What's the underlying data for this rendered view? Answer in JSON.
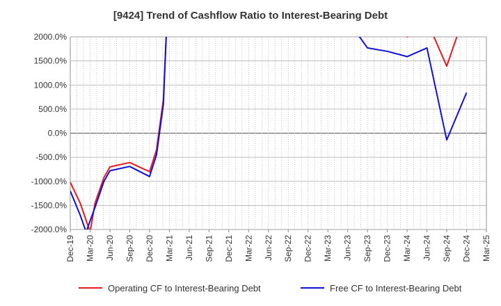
{
  "chart_data": {
    "type": "line",
    "title": "[9424]  Trend of Cashflow Ratio to Interest-Bearing Debt",
    "xlabel": "",
    "ylabel": "",
    "categories": [
      "Dec-19",
      "Mar-20",
      "Jun-20",
      "Sep-20",
      "Dec-20",
      "Mar-21",
      "Jun-21",
      "Sep-21",
      "Dec-21",
      "Mar-22",
      "Jun-22",
      "Sep-22",
      "Dec-22",
      "Mar-23",
      "Jun-23",
      "Sep-23",
      "Dec-23",
      "Mar-24",
      "Jun-24",
      "Sep-24",
      "Dec-24",
      "Mar-25"
    ],
    "ylim": [
      -2000,
      2000
    ],
    "yticks": [
      2000,
      1500,
      1000,
      500,
      0,
      -500,
      -1000,
      -1500,
      -2000
    ],
    "ytick_labels": [
      "2000.0%",
      "1500.0%",
      "1000.0%",
      "500.0%",
      "0.0%",
      "-500.0%",
      "-1000.0%",
      "-1500.0%",
      "-2000.0%"
    ],
    "grid": true,
    "legend_position": "bottom",
    "series": [
      {
        "name": "Operating CF to Interest-Bearing Debt",
        "color": "#e8191c",
        "points": [
          {
            "x": 0,
            "y": -1020
          },
          {
            "x": 0.5,
            "y": -1450
          },
          {
            "x": 1,
            "y": -2050
          },
          {
            "x": 1.25,
            "y": -1450
          },
          {
            "x": 1.7,
            "y": -920
          },
          {
            "x": 2,
            "y": -700
          },
          {
            "x": 3,
            "y": -610
          },
          {
            "x": 4,
            "y": -800
          },
          {
            "x": 4.35,
            "y": -350
          },
          {
            "x": 4.7,
            "y": 700
          },
          {
            "x": 4.85,
            "y": 2100
          },
          {
            "x": 16.8,
            "y": 2050
          },
          {
            "x": 17,
            "y": 2000
          },
          {
            "x": 17.3,
            "y": 2050
          },
          {
            "x": 18.3,
            "y": 2050
          },
          {
            "x": 19,
            "y": 1390
          },
          {
            "x": 19.55,
            "y": 2050
          }
        ]
      },
      {
        "name": "Free CF to Interest-Bearing Debt",
        "color": "#1010d6",
        "points": [
          {
            "x": 0,
            "y": -1200
          },
          {
            "x": 0.5,
            "y": -1700
          },
          {
            "x": 0.8,
            "y": -2050
          },
          {
            "x": 1.3,
            "y": -1480
          },
          {
            "x": 1.7,
            "y": -1000
          },
          {
            "x": 2,
            "y": -780
          },
          {
            "x": 3,
            "y": -690
          },
          {
            "x": 4,
            "y": -900
          },
          {
            "x": 4.35,
            "y": -450
          },
          {
            "x": 4.7,
            "y": 600
          },
          {
            "x": 4.85,
            "y": 2100
          },
          {
            "x": 14.3,
            "y": 2050
          },
          {
            "x": 14.6,
            "y": 2000
          },
          {
            "x": 15,
            "y": 1770
          },
          {
            "x": 16,
            "y": 1700
          },
          {
            "x": 17,
            "y": 1590
          },
          {
            "x": 18,
            "y": 1770
          },
          {
            "x": 19,
            "y": -140
          },
          {
            "x": 20,
            "y": 840
          }
        ]
      }
    ]
  }
}
